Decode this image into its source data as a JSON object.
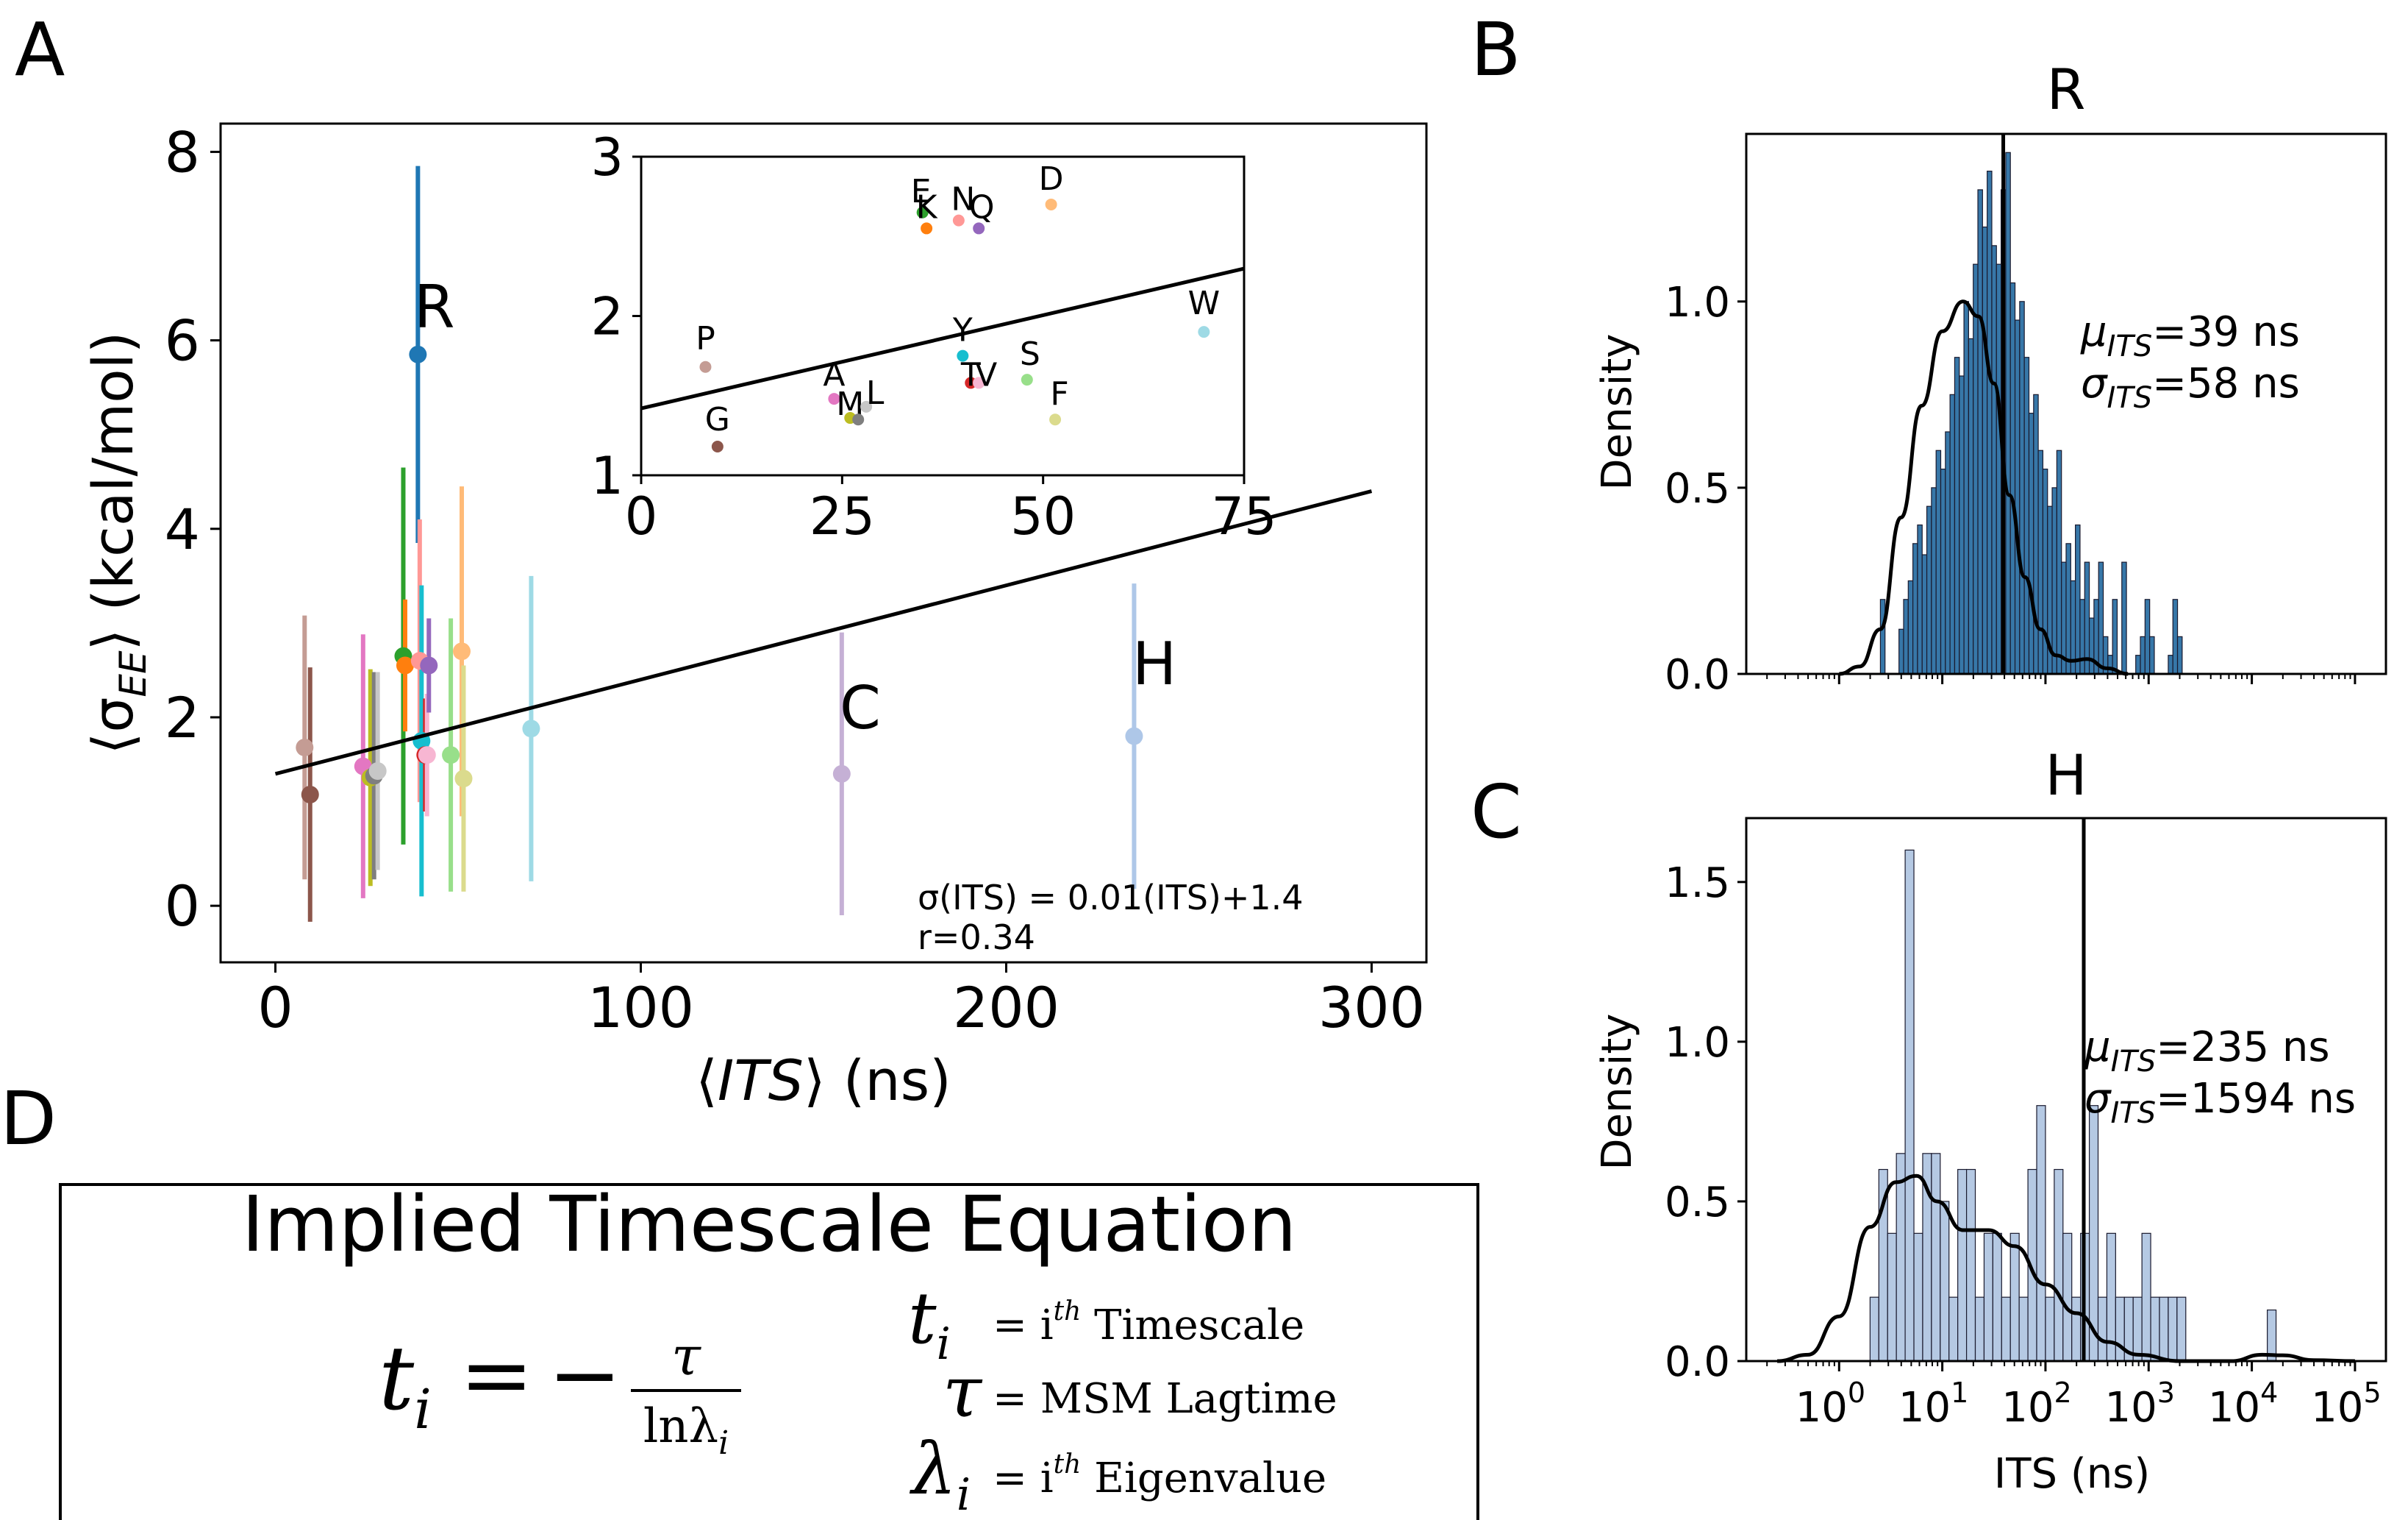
{
  "panel_letters": {
    "a": "A",
    "b": "B",
    "c": "C",
    "d": "D"
  },
  "colors": {
    "axis": "#000000",
    "hist_r_fill": "#3777a8",
    "hist_h_fill": "#b5c9e3",
    "fit_line": "#000000"
  },
  "chart_data": [
    {
      "id": "A",
      "type": "scatter",
      "title": "",
      "xlabel": "⟨ITS⟩ (ns)",
      "ylabel": "⟨σEE⟩ (kcal/mol)",
      "xlim": [
        -15,
        315
      ],
      "ylim": [
        -0.6,
        8.3
      ],
      "xticks": [
        0,
        100,
        200,
        300
      ],
      "yticks": [
        0,
        2,
        4,
        6,
        8
      ],
      "fit": {
        "slope": 0.01,
        "intercept": 1.4,
        "x_range": [
          0,
          300
        ]
      },
      "annotation_lines": [
        "σ(ITS) = 0.01(ITS)+1.4",
        "r=0.34"
      ],
      "labeled_points": [
        {
          "label": "R",
          "x": 39,
          "y": 5.85
        },
        {
          "label": "C",
          "x": 155,
          "y": 1.4
        },
        {
          "label": "H",
          "x": 235,
          "y": 1.8
        }
      ],
      "points": [
        {
          "x": 8,
          "y": 1.68,
          "err": 1.4,
          "color": "#c49c94"
        },
        {
          "x": 9.5,
          "y": 1.18,
          "err": 1.35,
          "color": "#8c564b"
        },
        {
          "x": 24,
          "y": 1.48,
          "err": 1.4,
          "color": "#e377c2"
        },
        {
          "x": 26,
          "y": 1.36,
          "err": 1.15,
          "color": "#bcbd22"
        },
        {
          "x": 27,
          "y": 1.38,
          "err": 1.1,
          "color": "#7f7f7f"
        },
        {
          "x": 28,
          "y": 1.43,
          "err": 1.05,
          "color": "#c7c7c7"
        },
        {
          "x": 35,
          "y": 2.65,
          "err": 2.0,
          "color": "#2ca02c"
        },
        {
          "x": 35.5,
          "y": 2.55,
          "err": 0.7,
          "color": "#ff7f0e"
        },
        {
          "x": 39,
          "y": 5.85,
          "err": 2.0,
          "color": "#1f77b4"
        },
        {
          "x": 39.5,
          "y": 2.6,
          "err": 1.5,
          "color": "#ff9896"
        },
        {
          "x": 40,
          "y": 1.75,
          "err": 1.65,
          "color": "#17becf"
        },
        {
          "x": 41,
          "y": 1.6,
          "err": 0.6,
          "color": "#d62728"
        },
        {
          "x": 41.5,
          "y": 1.6,
          "err": 0.65,
          "color": "#f7b6d2"
        },
        {
          "x": 42,
          "y": 2.55,
          "err": 0.5,
          "color": "#9467bd"
        },
        {
          "x": 48,
          "y": 1.6,
          "err": 1.45,
          "color": "#98df8a"
        },
        {
          "x": 51,
          "y": 2.7,
          "err": 1.75,
          "color": "#ffbb78"
        },
        {
          "x": 51.5,
          "y": 1.35,
          "err": 1.2,
          "color": "#dbdb8d"
        },
        {
          "x": 70,
          "y": 1.88,
          "err": 1.62,
          "color": "#9edae5"
        },
        {
          "x": 155,
          "y": 1.4,
          "err": 1.5,
          "color": "#c5b0d5"
        },
        {
          "x": 235,
          "y": 1.8,
          "err": 1.62,
          "color": "#aec7e8"
        }
      ]
    },
    {
      "id": "A-inset",
      "type": "scatter",
      "title": "",
      "xlim": [
        0,
        75
      ],
      "ylim": [
        1,
        3
      ],
      "xticks": [
        0,
        25,
        50,
        75
      ],
      "yticks": [
        1,
        2,
        3
      ],
      "fit": {
        "slope": 0.0117,
        "intercept": 1.42,
        "x_range": [
          0,
          75
        ]
      },
      "points": [
        {
          "label": "E",
          "x": 35,
          "y": 2.65,
          "color": "#2ca02c"
        },
        {
          "label": "K",
          "x": 35.5,
          "y": 2.55,
          "color": "#ff7f0e"
        },
        {
          "label": "N",
          "x": 39.5,
          "y": 2.6,
          "color": "#ff9896"
        },
        {
          "label": "Q",
          "x": 42,
          "y": 2.55,
          "color": "#9467bd"
        },
        {
          "label": "D",
          "x": 51,
          "y": 2.7,
          "color": "#ffbb78"
        },
        {
          "label": "P",
          "x": 8,
          "y": 1.68,
          "color": "#c49c94"
        },
        {
          "label": "G",
          "x": 9.5,
          "y": 1.18,
          "color": "#8c564b"
        },
        {
          "label": "A",
          "x": 24,
          "y": 1.48,
          "color": "#e377c2"
        },
        {
          "label": "M",
          "x": 26,
          "y": 1.36,
          "color": "#bcbd22"
        },
        {
          "label": "",
          "x": 27,
          "y": 1.35,
          "color": "#7f7f7f"
        },
        {
          "label": "L",
          "x": 28,
          "y": 1.43,
          "color": "#c7c7c7"
        },
        {
          "label": "Y",
          "x": 40,
          "y": 1.75,
          "color": "#17becf"
        },
        {
          "label": "T",
          "x": 41,
          "y": 1.58,
          "color": "#d62728"
        },
        {
          "label": "V",
          "x": 42,
          "y": 1.58,
          "color": "#f7b6d2"
        },
        {
          "label": "S",
          "x": 48,
          "y": 1.6,
          "color": "#98df8a"
        },
        {
          "label": "F",
          "x": 51.5,
          "y": 1.35,
          "color": "#dbdb8d"
        },
        {
          "label": "W",
          "x": 70,
          "y": 1.9,
          "color": "#9edae5"
        }
      ]
    },
    {
      "id": "B",
      "type": "bar",
      "title": "R",
      "xlabel": "",
      "ylabel": "Density",
      "x_scale": "log",
      "xlim_log10": [
        -0.9,
        5.3
      ],
      "ylim": [
        0,
        1.45
      ],
      "yticks": [
        0.0,
        0.5,
        1.0
      ],
      "mean_line_x": 39,
      "stats_lines": [
        "μITS=39 ns",
        "σITS=58 ns"
      ],
      "hist_bin_start_log10": 0.4,
      "hist_bin_width_log10": 0.045,
      "hist_values": [
        0.2,
        0,
        0,
        0,
        0.12,
        0.2,
        0.25,
        0.35,
        0.4,
        0.32,
        0.45,
        0.5,
        0.6,
        0.55,
        0.65,
        0.75,
        0.85,
        0.8,
        1.0,
        0.9,
        1.1,
        1.3,
        1.2,
        1.35,
        1.15,
        1.1,
        1.3,
        1.4,
        1.05,
        0.95,
        1.0,
        0.85,
        0.7,
        0.75,
        0.6,
        0.55,
        0.45,
        0.5,
        0.6,
        0.3,
        0.35,
        0.25,
        0.4,
        0.2,
        0.3,
        0.15,
        0.2,
        0.3,
        0.1,
        0.05,
        0.2,
        0,
        0.3,
        0,
        0,
        0.05,
        0.1,
        0.2,
        0.1,
        0,
        0,
        0,
        0.05,
        0.2,
        0.1
      ],
      "kde": [
        [
          0.0,
          0.0
        ],
        [
          0.2,
          0.02
        ],
        [
          0.4,
          0.12
        ],
        [
          0.6,
          0.42
        ],
        [
          0.8,
          0.72
        ],
        [
          1.0,
          0.92
        ],
        [
          1.2,
          1.0
        ],
        [
          1.35,
          0.96
        ],
        [
          1.5,
          0.78
        ],
        [
          1.65,
          0.48
        ],
        [
          1.8,
          0.26
        ],
        [
          1.95,
          0.12
        ],
        [
          2.1,
          0.05
        ],
        [
          2.25,
          0.035
        ],
        [
          2.4,
          0.04
        ],
        [
          2.6,
          0.015
        ],
        [
          2.8,
          0.0
        ]
      ]
    },
    {
      "id": "C",
      "type": "bar",
      "title": "H",
      "xlabel": "ITS (ns)",
      "ylabel": "Density",
      "x_scale": "log",
      "xlim_log10": [
        -0.9,
        5.3
      ],
      "ylim": [
        0,
        1.7
      ],
      "yticks": [
        0.0,
        0.5,
        1.0,
        1.5
      ],
      "xtick_exponents": [
        "0",
        "1",
        "2",
        "3",
        "4",
        "5"
      ],
      "mean_line_x": 235,
      "stats_lines": [
        "μITS=235 ns",
        "σITS=1594 ns"
      ],
      "hist_bin_start_log10": 0.3,
      "hist_bin_width_log10": 0.085,
      "hist_values": [
        0.2,
        0.6,
        0.4,
        0.65,
        1.6,
        0.4,
        0.65,
        0.65,
        0.5,
        0.2,
        0.6,
        0.6,
        0.2,
        0.4,
        0.4,
        0.2,
        0.4,
        0.2,
        0.6,
        0.8,
        0.2,
        0.6,
        0.4,
        0.2,
        0.4,
        0.8,
        0.2,
        0.4,
        0.2,
        0.2,
        0.2,
        0.4,
        0.2,
        0.2,
        0.2,
        0.2
      ],
      "hist_extra": [
        {
          "log10_x": 4.15,
          "value": 0.16
        }
      ],
      "kde": [
        [
          -0.6,
          0.0
        ],
        [
          -0.3,
          0.02
        ],
        [
          0.0,
          0.14
        ],
        [
          0.3,
          0.42
        ],
        [
          0.55,
          0.56
        ],
        [
          0.75,
          0.58
        ],
        [
          0.95,
          0.5
        ],
        [
          1.2,
          0.41
        ],
        [
          1.45,
          0.41
        ],
        [
          1.7,
          0.36
        ],
        [
          2.0,
          0.24
        ],
        [
          2.3,
          0.15
        ],
        [
          2.6,
          0.06
        ],
        [
          2.9,
          0.02
        ],
        [
          3.3,
          0.0
        ],
        [
          3.8,
          0.0
        ],
        [
          4.1,
          0.02
        ],
        [
          4.3,
          0.018
        ],
        [
          4.6,
          0.003
        ],
        [
          5.0,
          0.0
        ]
      ]
    }
  ],
  "equation_panel": {
    "title": "Implied Timescale Equation",
    "lhs_var": "t",
    "lhs_sub": "i",
    "equals": "=",
    "minus": "−",
    "numerator": "τ",
    "denominator": "lnλ",
    "denominator_sub": "i",
    "definitions": [
      {
        "symbol": "t",
        "sub": "i",
        "sup": "",
        "rhs": "= i",
        "rhs_sup": "th",
        "rhs_text": " Timescale"
      },
      {
        "symbol": "τ",
        "sub": "",
        "sup": "",
        "rhs": "= MSM Lagtime",
        "rhs_sup": "",
        "rhs_text": ""
      },
      {
        "symbol": "λ",
        "sub": "i",
        "sup": "",
        "rhs": "= i",
        "rhs_sup": "th",
        "rhs_text": " Eigenvalue"
      }
    ]
  }
}
